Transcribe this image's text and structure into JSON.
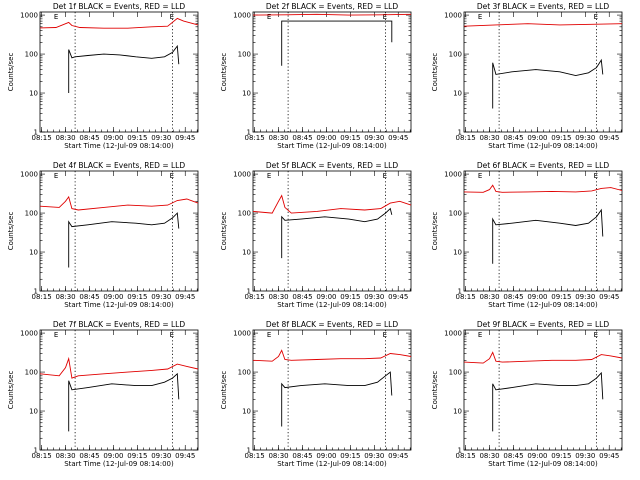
{
  "chart_data": [
    {
      "type": "line",
      "title": "Det 1f BLACK = Events, RED = LLD",
      "xlabel": "Start Time (12-Jul-09 08:14:00)",
      "ylabel": "Counts/sec",
      "xticks": [
        "08:15",
        "08:30",
        "08:45",
        "09:00",
        "09:15",
        "09:30",
        "09:45"
      ],
      "yticks": [
        "1",
        "10",
        "100",
        "1000"
      ],
      "xlim": [
        0,
        99
      ],
      "ylim_log": [
        1,
        1200
      ],
      "markers": [
        {
          "x": 20,
          "label": "E"
        },
        {
          "x": 85,
          "label": "E"
        }
      ],
      "dotted_x": [
        22,
        83
      ],
      "series": [
        {
          "name": "BLACK = Events",
          "color": "#000000",
          "x": [
            18,
            18,
            20,
            22,
            30,
            40,
            50,
            60,
            70,
            78,
            83,
            86,
            87
          ],
          "y": [
            10,
            130,
            80,
            85,
            92,
            100,
            95,
            85,
            78,
            85,
            110,
            160,
            55
          ]
        },
        {
          "name": "RED = LLD",
          "color": "#e00000",
          "x": [
            0,
            10,
            18,
            20,
            25,
            40,
            55,
            70,
            80,
            86,
            90,
            99
          ],
          "y": [
            470,
            480,
            650,
            540,
            480,
            460,
            460,
            500,
            520,
            820,
            700,
            560
          ]
        }
      ]
    },
    {
      "type": "line",
      "title": "Det 2f BLACK = Events, RED = LLD",
      "xlabel": "Start Time (12-Jul-09 08:14:00)",
      "ylabel": "Counts/sec",
      "xticks": [
        "08:15",
        "08:30",
        "08:45",
        "09:00",
        "09:15",
        "09:30",
        "09:45"
      ],
      "yticks": [
        "1",
        "10",
        "100",
        "1000"
      ],
      "xlim": [
        0,
        99
      ],
      "ylim_log": [
        1,
        1200
      ],
      "markers": [
        {
          "x": 20,
          "label": "E"
        },
        {
          "x": 85,
          "label": "E"
        }
      ],
      "dotted_x": [
        22,
        83
      ],
      "series": [
        {
          "name": "BLACK = Events",
          "color": "#000000",
          "x": [
            18,
            18,
            20,
            30,
            45,
            60,
            75,
            85,
            87,
            87
          ],
          "y": [
            50,
            700,
            700,
            700,
            700,
            700,
            700,
            700,
            700,
            200
          ]
        },
        {
          "name": "RED = LLD",
          "color": "#e00000",
          "x": [
            0,
            20,
            40,
            60,
            80,
            99
          ],
          "y": [
            1000,
            1020,
            1050,
            1000,
            1020,
            1050
          ]
        }
      ]
    },
    {
      "type": "line",
      "title": "Det 3f BLACK = Events, RED = LLD",
      "xlabel": "Start Time (12-Jul-09 08:14:00)",
      "ylabel": "Counts/sec",
      "xticks": [
        "08:15",
        "08:30",
        "08:45",
        "09:00",
        "09:15",
        "09:30",
        "09:45"
      ],
      "yticks": [
        "1",
        "10",
        "100",
        "1000"
      ],
      "xlim": [
        0,
        99
      ],
      "ylim_log": [
        1,
        1200
      ],
      "markers": [
        {
          "x": 20,
          "label": "E"
        },
        {
          "x": 85,
          "label": "E"
        }
      ],
      "dotted_x": [
        22,
        83
      ],
      "series": [
        {
          "name": "BLACK = Events",
          "color": "#000000",
          "x": [
            18,
            18,
            20,
            30,
            45,
            60,
            70,
            78,
            83,
            86,
            87
          ],
          "y": [
            4,
            60,
            30,
            35,
            40,
            35,
            28,
            33,
            45,
            70,
            30
          ]
        },
        {
          "name": "RED = LLD",
          "color": "#e00000",
          "x": [
            0,
            20,
            40,
            60,
            80,
            99
          ],
          "y": [
            520,
            560,
            600,
            560,
            580,
            600
          ]
        }
      ]
    },
    {
      "type": "line",
      "title": "Det 4f BLACK = Events, RED = LLD",
      "xlabel": "Start Time (12-Jul-09 08:14:00)",
      "ylabel": "Counts/sec",
      "xticks": [
        "08:15",
        "08:30",
        "08:45",
        "09:00",
        "09:15",
        "09:30",
        "09:45"
      ],
      "yticks": [
        "1",
        "10",
        "100",
        "1000"
      ],
      "xlim": [
        0,
        99
      ],
      "ylim_log": [
        1,
        1200
      ],
      "markers": [
        {
          "x": 20,
          "label": "E"
        },
        {
          "x": 85,
          "label": "E"
        }
      ],
      "dotted_x": [
        22,
        83
      ],
      "series": [
        {
          "name": "BLACK = Events",
          "color": "#000000",
          "x": [
            18,
            18,
            20,
            30,
            45,
            60,
            70,
            78,
            83,
            86,
            87
          ],
          "y": [
            4,
            60,
            45,
            50,
            60,
            55,
            50,
            55,
            75,
            100,
            40
          ]
        },
        {
          "name": "RED = LLD",
          "color": "#e00000",
          "x": [
            0,
            12,
            16,
            18,
            20,
            24,
            40,
            55,
            70,
            80,
            86,
            92,
            99
          ],
          "y": [
            150,
            140,
            200,
            260,
            130,
            120,
            140,
            160,
            150,
            160,
            210,
            230,
            180
          ]
        }
      ]
    },
    {
      "type": "line",
      "title": "Det 5f BLACK = Events, RED = LLD",
      "xlabel": "Start Time (12-Jul-09 08:14:00)",
      "ylabel": "Counts/sec",
      "xticks": [
        "08:15",
        "08:30",
        "08:45",
        "09:00",
        "09:15",
        "09:30",
        "09:45"
      ],
      "yticks": [
        "1",
        "10",
        "100",
        "1000"
      ],
      "xlim": [
        0,
        99
      ],
      "ylim_log": [
        1,
        1200
      ],
      "markers": [
        {
          "x": 20,
          "label": "E"
        },
        {
          "x": 85,
          "label": "E"
        }
      ],
      "dotted_x": [
        22,
        83
      ],
      "series": [
        {
          "name": "BLACK = Events",
          "color": "#000000",
          "x": [
            18,
            18,
            20,
            30,
            45,
            60,
            70,
            78,
            83,
            86,
            87
          ],
          "y": [
            7,
            80,
            65,
            70,
            80,
            70,
            60,
            70,
            100,
            130,
            90
          ]
        },
        {
          "name": "RED = LLD",
          "color": "#e00000",
          "x": [
            0,
            12,
            16,
            18,
            20,
            24,
            40,
            55,
            70,
            80,
            86,
            92,
            99
          ],
          "y": [
            110,
            100,
            200,
            280,
            140,
            100,
            110,
            130,
            120,
            130,
            180,
            200,
            160
          ]
        }
      ]
    },
    {
      "type": "line",
      "title": "Det 6f BLACK = Events, RED = LLD",
      "xlabel": "Start Time (12-Jul-09 08:14:00)",
      "ylabel": "Counts/sec",
      "xticks": [
        "08:15",
        "08:30",
        "08:45",
        "09:00",
        "09:15",
        "09:30",
        "09:45"
      ],
      "yticks": [
        "1",
        "10",
        "100",
        "1000"
      ],
      "xlim": [
        0,
        99
      ],
      "ylim_log": [
        1,
        1200
      ],
      "markers": [
        {
          "x": 20,
          "label": "E"
        },
        {
          "x": 85,
          "label": "E"
        }
      ],
      "dotted_x": [
        22,
        83
      ],
      "series": [
        {
          "name": "BLACK = Events",
          "color": "#000000",
          "x": [
            18,
            18,
            20,
            30,
            45,
            60,
            70,
            78,
            83,
            86,
            87
          ],
          "y": [
            5,
            70,
            50,
            55,
            65,
            55,
            48,
            55,
            80,
            120,
            25
          ]
        },
        {
          "name": "RED = LLD",
          "color": "#e00000",
          "x": [
            0,
            12,
            16,
            18,
            20,
            24,
            40,
            55,
            70,
            80,
            86,
            92,
            99
          ],
          "y": [
            350,
            340,
            400,
            520,
            360,
            340,
            350,
            360,
            350,
            370,
            430,
            450,
            380
          ]
        }
      ]
    },
    {
      "type": "line",
      "title": "Det 7f BLACK = Events, RED = LLD",
      "xlabel": "Start Time (12-Jul-09 08:14:00)",
      "ylabel": "Counts/sec",
      "xticks": [
        "08:15",
        "08:30",
        "08:45",
        "09:00",
        "09:15",
        "09:30",
        "09:45"
      ],
      "yticks": [
        "1",
        "10",
        "100",
        "1000"
      ],
      "xlim": [
        0,
        99
      ],
      "ylim_log": [
        1,
        1200
      ],
      "markers": [
        {
          "x": 20,
          "label": "E"
        },
        {
          "x": 85,
          "label": "E"
        }
      ],
      "dotted_x": [
        22,
        83
      ],
      "series": [
        {
          "name": "BLACK = Events",
          "color": "#000000",
          "x": [
            18,
            18,
            20,
            30,
            45,
            60,
            70,
            78,
            83,
            86,
            87
          ],
          "y": [
            3,
            60,
            35,
            40,
            50,
            45,
            45,
            55,
            70,
            90,
            20
          ]
        },
        {
          "name": "RED = LLD",
          "color": "#e00000",
          "x": [
            0,
            12,
            16,
            18,
            20,
            24,
            40,
            55,
            70,
            80,
            86,
            92,
            99
          ],
          "y": [
            90,
            80,
            130,
            220,
            70,
            80,
            90,
            100,
            110,
            120,
            160,
            140,
            120
          ]
        }
      ]
    },
    {
      "type": "line",
      "title": "Det 8f BLACK = Events, RED = LLD",
      "xlabel": "Start Time (12-Jul-09 08:14:00)",
      "ylabel": "Counts/sec",
      "xticks": [
        "08:15",
        "08:30",
        "08:45",
        "09:00",
        "09:15",
        "09:30",
        "09:45"
      ],
      "yticks": [
        "1",
        "10",
        "100",
        "1000"
      ],
      "xlim": [
        0,
        99
      ],
      "ylim_log": [
        1,
        1200
      ],
      "markers": [
        {
          "x": 20,
          "label": "E"
        },
        {
          "x": 85,
          "label": "E"
        }
      ],
      "dotted_x": [
        22,
        83
      ],
      "series": [
        {
          "name": "BLACK = Events",
          "color": "#000000",
          "x": [
            18,
            18,
            20,
            30,
            45,
            60,
            70,
            78,
            83,
            86,
            87
          ],
          "y": [
            4,
            50,
            40,
            45,
            50,
            45,
            45,
            55,
            80,
            100,
            25
          ]
        },
        {
          "name": "RED = LLD",
          "color": "#e00000",
          "x": [
            0,
            12,
            16,
            18,
            20,
            24,
            40,
            55,
            70,
            80,
            86,
            92,
            99
          ],
          "y": [
            200,
            190,
            250,
            360,
            210,
            200,
            210,
            220,
            220,
            230,
            300,
            280,
            250
          ]
        }
      ]
    },
    {
      "type": "line",
      "title": "Det 9f BLACK = Events, RED = LLD",
      "xlabel": "Start Time (12-Jul-09 08:14:00)",
      "ylabel": "Counts/sec",
      "xticks": [
        "08:15",
        "08:30",
        "08:45",
        "09:00",
        "09:15",
        "09:30",
        "09:45"
      ],
      "yticks": [
        "1",
        "10",
        "100",
        "1000"
      ],
      "xlim": [
        0,
        99
      ],
      "ylim_log": [
        1,
        1200
      ],
      "markers": [
        {
          "x": 20,
          "label": "E"
        },
        {
          "x": 85,
          "label": "E"
        }
      ],
      "dotted_x": [
        22,
        83
      ],
      "series": [
        {
          "name": "BLACK = Events",
          "color": "#000000",
          "x": [
            18,
            18,
            20,
            30,
            45,
            60,
            70,
            78,
            83,
            86,
            87
          ],
          "y": [
            3,
            50,
            35,
            40,
            50,
            45,
            45,
            50,
            70,
            95,
            20
          ]
        },
        {
          "name": "RED = LLD",
          "color": "#e00000",
          "x": [
            0,
            12,
            16,
            18,
            20,
            24,
            40,
            55,
            70,
            80,
            86,
            92,
            99
          ],
          "y": [
            180,
            170,
            220,
            320,
            190,
            180,
            190,
            200,
            200,
            210,
            280,
            260,
            230
          ]
        }
      ]
    }
  ]
}
